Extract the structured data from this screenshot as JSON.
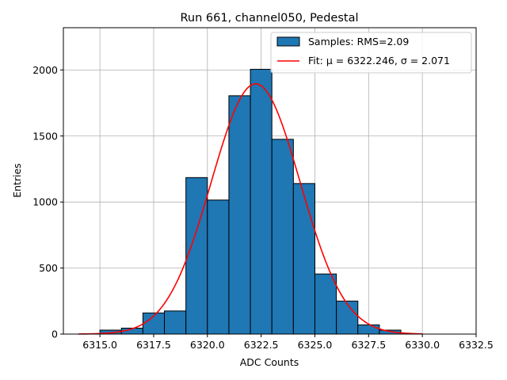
{
  "chart_data": {
    "type": "bar",
    "title": "Run 661, channel050, Pedestal",
    "xlabel": "ADC Counts",
    "ylabel": "Entries",
    "xlim": [
      6313.3,
      6332.5
    ],
    "ylim": [
      0,
      2320
    ],
    "grid": true,
    "xticks": [
      6315.0,
      6317.5,
      6320.0,
      6322.5,
      6325.0,
      6327.5,
      6330.0,
      6332.5
    ],
    "xtick_labels": [
      "6315.0",
      "6317.5",
      "6320.0",
      "6322.5",
      "6325.0",
      "6327.5",
      "6330.0",
      "6332.5"
    ],
    "yticks": [
      0,
      500,
      1000,
      1500,
      2000
    ],
    "ytick_labels": [
      "0",
      "500",
      "1000",
      "1500",
      "2000"
    ],
    "bin_edges": [
      6315,
      6316,
      6317,
      6318,
      6319,
      6320,
      6321,
      6322,
      6323,
      6324,
      6325,
      6326,
      6327,
      6328,
      6329
    ],
    "counts": [
      30,
      45,
      160,
      175,
      1185,
      1015,
      1805,
      2005,
      1475,
      1140,
      455,
      250,
      70,
      30
    ],
    "fit": {
      "mu": 6322.246,
      "sigma": 2.071,
      "amplitude": 1895,
      "x_range": [
        6314,
        6330
      ]
    },
    "legend": {
      "position": "top-right",
      "hist_label": "Samples: RMS=2.09",
      "fit_prefix": "Fit: ",
      "fit_mu_label": "μ = 6322.246, ",
      "fit_sigma_label": "σ = 2.071"
    },
    "colors": {
      "bars": "#1f77b4",
      "bar_edge": "#000000",
      "fit": "#ff0000",
      "grid": "#b0b0b0"
    }
  }
}
